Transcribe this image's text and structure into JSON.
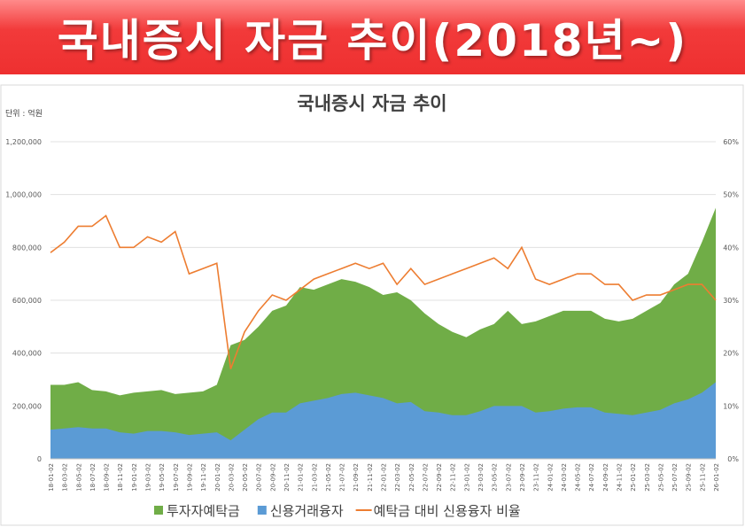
{
  "header": {
    "title": "국내증시 자금 추이(2018년~)"
  },
  "chart_data": {
    "type": "area-line",
    "title": "국내증시 자금 추이",
    "y_label": "단위 : 억원",
    "categories": [
      "18-01-02",
      "18-03-02",
      "18-05-02",
      "18-07-02",
      "18-09-02",
      "18-11-02",
      "19-01-02",
      "19-03-02",
      "19-05-02",
      "19-07-02",
      "19-09-02",
      "19-11-02",
      "20-01-02",
      "20-03-02",
      "20-05-02",
      "20-07-02",
      "20-09-02",
      "20-11-02",
      "21-01-02",
      "21-03-02",
      "21-05-02",
      "21-07-02",
      "21-09-02",
      "21-11-02",
      "22-01-02",
      "22-03-02",
      "22-05-02",
      "22-07-02",
      "22-09-02",
      "22-11-02",
      "23-01-02",
      "23-03-02",
      "23-05-02",
      "23-07-02",
      "23-09-02",
      "23-11-02",
      "24-01-02",
      "24-03-02",
      "24-05-02",
      "24-07-02",
      "24-09-02",
      "24-11-02",
      "25-01-02",
      "25-03-02",
      "25-05-02",
      "25-07-02",
      "25-09-02",
      "25-11-02",
      "26-01-02"
    ],
    "series": [
      {
        "name": "투자자예탁금",
        "color": "#70ad47",
        "kind": "area",
        "values": [
          280000,
          280000,
          290000,
          260000,
          255000,
          240000,
          250000,
          255000,
          260000,
          245000,
          250000,
          255000,
          280000,
          430000,
          450000,
          500000,
          560000,
          580000,
          650000,
          640000,
          660000,
          680000,
          670000,
          650000,
          620000,
          630000,
          600000,
          550000,
          510000,
          480000,
          460000,
          490000,
          510000,
          560000,
          510000,
          520000,
          540000,
          560000,
          560000,
          560000,
          530000,
          520000,
          530000,
          560000,
          590000,
          660000,
          700000,
          820000,
          950000
        ]
      },
      {
        "name": "신용거래융자",
        "color": "#5b9bd5",
        "kind": "area",
        "values": [
          110000,
          115000,
          120000,
          115000,
          115000,
          100000,
          95000,
          105000,
          105000,
          100000,
          90000,
          95000,
          100000,
          70000,
          110000,
          150000,
          175000,
          175000,
          210000,
          220000,
          230000,
          245000,
          250000,
          240000,
          230000,
          210000,
          215000,
          180000,
          175000,
          165000,
          165000,
          180000,
          200000,
          200000,
          200000,
          175000,
          180000,
          190000,
          195000,
          195000,
          175000,
          170000,
          165000,
          175000,
          185000,
          210000,
          225000,
          250000,
          290000
        ]
      },
      {
        "name": "예탁금 대비 신용융자 비율",
        "color": "#ed7d31",
        "kind": "line",
        "axis": "y2",
        "values": [
          39,
          41,
          44,
          44,
          46,
          40,
          40,
          42,
          41,
          43,
          35,
          36,
          37,
          17,
          24,
          28,
          31,
          30,
          32,
          34,
          35,
          36,
          37,
          36,
          37,
          33,
          36,
          33,
          34,
          35,
          36,
          37,
          38,
          36,
          40,
          34,
          33,
          34,
          35,
          35,
          33,
          33,
          30,
          31,
          31,
          32,
          33,
          33,
          30
        ]
      }
    ],
    "ylim": [
      0,
      1200000
    ],
    "yticks": [
      0,
      {
        "value": 200000,
        "label": "200,000"
      },
      {
        "value": 400000,
        "label": "400,000"
      },
      {
        "value": 600000,
        "label": "600,000"
      },
      {
        "value": 800000,
        "label": "800,000"
      },
      {
        "value": 1000000,
        "label": "1,000,000"
      },
      {
        "value": 1200000,
        "label": "1,200,000"
      }
    ],
    "y2lim": [
      0,
      60
    ],
    "y2ticks": [
      {
        "value": 0,
        "label": "0%"
      },
      {
        "value": 10,
        "label": "10%"
      },
      {
        "value": 20,
        "label": "20%"
      },
      {
        "value": 30,
        "label": "30%"
      },
      {
        "value": 40,
        "label": "40%"
      },
      {
        "value": 50,
        "label": "50%"
      },
      {
        "value": 60,
        "label": "60%"
      }
    ],
    "grid": true,
    "legend": "bottom"
  }
}
